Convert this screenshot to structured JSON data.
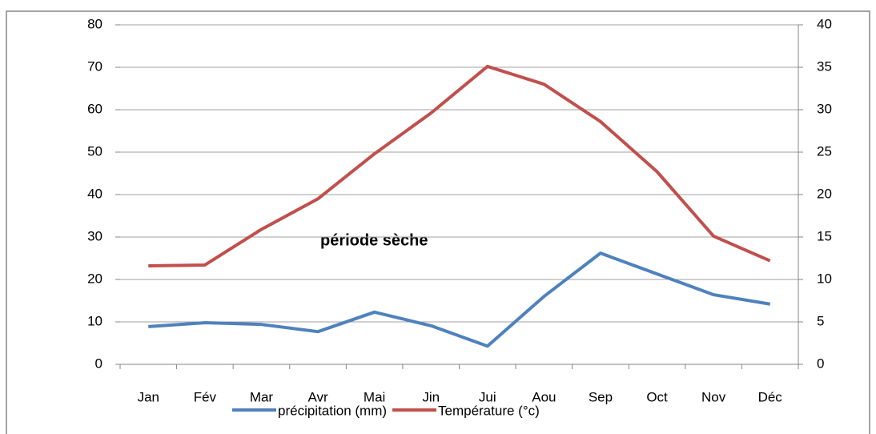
{
  "chart_data": {
    "type": "line",
    "categories": [
      "Jan",
      "Fév",
      "Mar",
      "Avr",
      "Mai",
      "Jin",
      "Jui",
      "Aou",
      "Sep",
      "Oct",
      "Nov",
      "Déc"
    ],
    "series": [
      {
        "name": "précipitation (mm)",
        "color": "#4f81bd",
        "values": [
          8.9,
          9.8,
          9.4,
          7.7,
          12.3,
          9.1,
          4.3,
          16,
          26.2,
          21.3,
          16.4,
          14.2
        ]
      },
      {
        "name": "Température (°c)",
        "color": "#c0504d",
        "axis": "y2",
        "values": [
          11.6,
          11.7,
          15.9,
          19.5,
          24.8,
          29.6,
          35.1,
          33,
          28.6,
          22.7,
          15.1,
          12.2
        ]
      }
    ],
    "annotation": "période sèche",
    "ylim": [
      0,
      80
    ],
    "yticks": [
      0,
      10,
      20,
      30,
      40,
      50,
      60,
      70,
      80
    ],
    "y2lim": [
      0,
      40
    ],
    "y2ticks": [
      0,
      5,
      10,
      15,
      20,
      25,
      30,
      35,
      40
    ],
    "grid": true,
    "legend": "bottom"
  }
}
